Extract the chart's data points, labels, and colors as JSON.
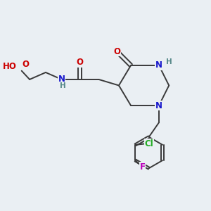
{
  "bg_color": "#eaeff3",
  "bond_color": "#3a3a3a",
  "bond_width": 1.4,
  "atom_colors": {
    "N": "#1818cc",
    "O": "#cc0000",
    "Cl": "#22aa22",
    "F": "#bb00bb",
    "H": "#558888",
    "C": "#3a3a3a"
  },
  "font_size": 8.5,
  "figsize": [
    3.0,
    3.0
  ],
  "dpi": 100
}
